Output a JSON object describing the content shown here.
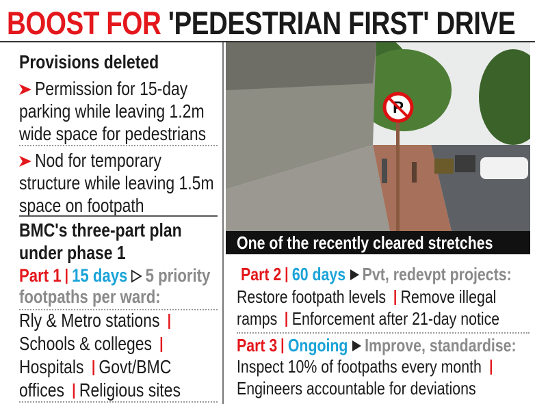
{
  "header": {
    "title_highlight": "BOOST FOR",
    "title_rest": "'PEDESTRIAN FIRST' DRIVE"
  },
  "provisions": {
    "heading": "Provisions deleted",
    "items": [
      "Permission for 15-day parking while leaving 1.2m wide space for pedestrians",
      "Nod for temporary structure while leaving 1.5m space on footpath"
    ]
  },
  "plan": {
    "heading": "BMC's three-part plan under phase 1",
    "parts": [
      {
        "label": "Part 1",
        "duration": "15 days",
        "focus": "5 priority footpaths per ward:",
        "actions": [
          "Rly & Metro stations",
          "Schools & colleges",
          "Hospitals",
          "Govt/BMC offices",
          "Religious sites"
        ]
      },
      {
        "label": "Part 2",
        "duration": "60 days",
        "focus": "Pvt, redevpt projects:",
        "actions": [
          "Restore footpath levels",
          "Remove illegal ramps",
          "Enforcement after 21-day notice"
        ]
      },
      {
        "label": "Part 3",
        "duration": "Ongoing",
        "focus": "Improve, standardise:",
        "actions": [
          "Inspect 10% of footpaths every month",
          "Engineers accountable for deviations"
        ]
      }
    ]
  },
  "photo": {
    "caption": "One of the recently cleared stretches"
  }
}
